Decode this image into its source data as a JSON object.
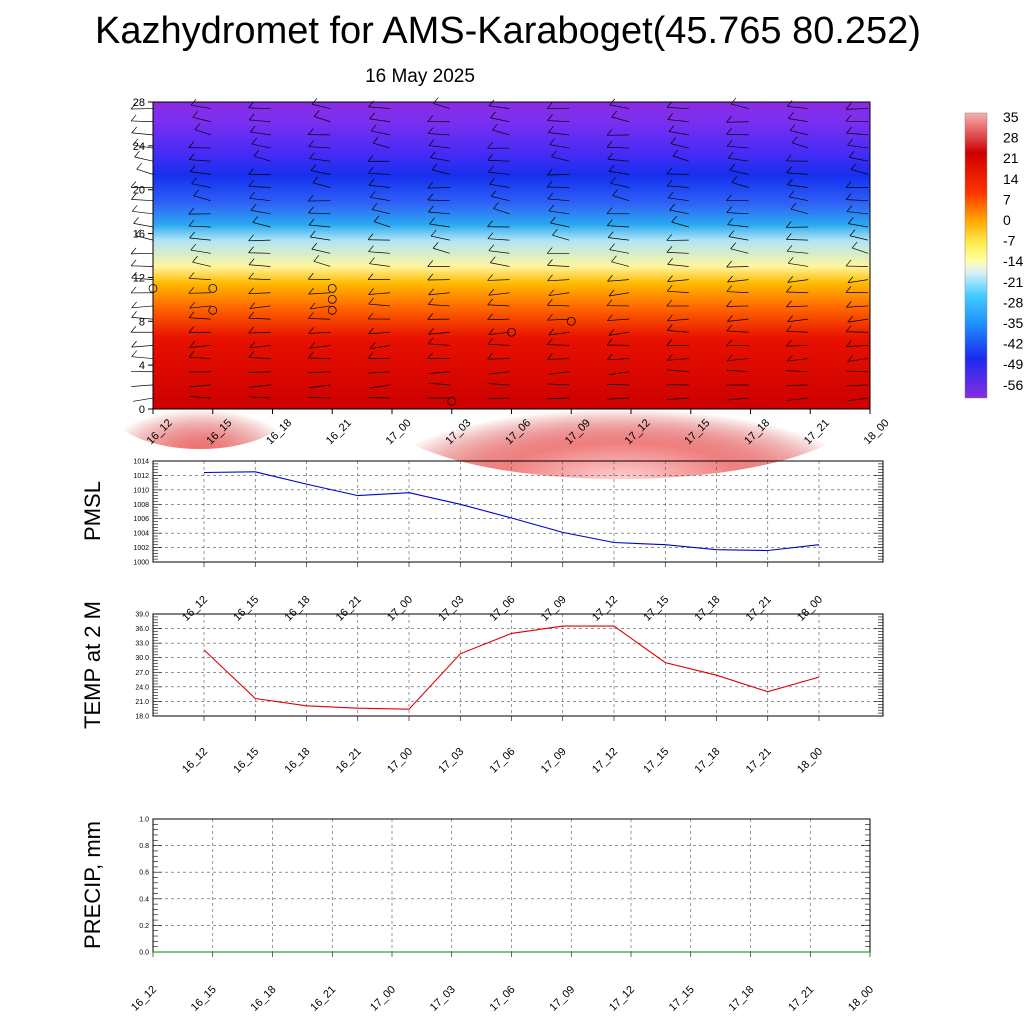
{
  "header": {
    "title": "Kazhydromet for AMS-Karaboget(45.765 80.252)",
    "subtitle": "16 May 2025"
  },
  "chart_data": [
    {
      "type": "heatmap",
      "name": "time-height cross-section",
      "x_ticks": [
        "16_12",
        "16_15",
        "16_18",
        "16_21",
        "17_00",
        "17_03",
        "17_06",
        "17_09",
        "17_12",
        "17_15",
        "17_18",
        "17_21",
        "18_00"
      ],
      "y_ticks": [
        0,
        4,
        8,
        12,
        16,
        20,
        24,
        28
      ],
      "ylim": [
        0,
        28
      ],
      "colorbar_labels": [
        "35",
        "28",
        "21",
        "14",
        "7",
        "0",
        "-7",
        "-14",
        "-21",
        "-28",
        "-35",
        "-42",
        "-49",
        "-56"
      ],
      "colors": {
        "warm": "#cc0000",
        "hot": "#f7b0b0",
        "yellow": "#ffee55",
        "cyan": "#66ccff",
        "blue": "#1530ee",
        "purple": "#8a2be2"
      },
      "wind_barbs": true,
      "grid": false
    },
    {
      "type": "line",
      "ylabel": "PMSL",
      "x_ticks": [
        "16_12",
        "16_15",
        "16_18",
        "16_21",
        "17_00",
        "17_03",
        "17_06",
        "17_09",
        "17_12",
        "17_15",
        "17_18",
        "17_21",
        "18_00"
      ],
      "y_ticks": [
        "1000",
        "1002",
        "1004",
        "1006",
        "1008",
        "1010",
        "1012",
        "1014"
      ],
      "ylim": [
        1000,
        1014
      ],
      "series": [
        {
          "color": "#0000cc",
          "values": [
            1012.4,
            1012.5,
            1010.8,
            1009.2,
            1009.6,
            1008.0,
            1006.1,
            1004.1,
            1002.7,
            1002.4,
            1001.7,
            1001.6,
            1002.4
          ]
        }
      ],
      "grid": true
    },
    {
      "type": "line",
      "ylabel": "TEMP at 2 M",
      "x_ticks": [
        "16_12",
        "16_15",
        "16_18",
        "16_21",
        "17_00",
        "17_03",
        "17_06",
        "17_09",
        "17_12",
        "17_15",
        "17_18",
        "17_21",
        "18_00"
      ],
      "y_ticks": [
        "18.0",
        "21.0",
        "24.0",
        "27.0",
        "30.0",
        "33.0",
        "36.0",
        "39.0"
      ],
      "ylim": [
        18,
        39
      ],
      "series": [
        {
          "color": "#dd0000",
          "values": [
            31.6,
            21.6,
            20.1,
            19.6,
            19.4,
            30.8,
            35.0,
            36.5,
            36.5,
            29.0,
            26.4,
            23.0,
            26.0
          ]
        }
      ],
      "grid": true
    },
    {
      "type": "line",
      "ylabel": "PRECIP, mm",
      "x_ticks": [
        "16_12",
        "16_15",
        "16_18",
        "16_21",
        "17_00",
        "17_03",
        "17_06",
        "17_09",
        "17_12",
        "17_15",
        "17_18",
        "17_21",
        "18_00"
      ],
      "y_ticks": [
        "0.0",
        "0.2",
        "0.4",
        "0.6",
        "0.8",
        "1.0"
      ],
      "ylim": [
        0,
        1
      ],
      "series": [
        {
          "color": "#008800",
          "values": [
            0,
            0,
            0,
            0,
            0,
            0,
            0,
            0,
            0,
            0,
            0,
            0,
            0
          ]
        }
      ],
      "grid": true
    }
  ]
}
